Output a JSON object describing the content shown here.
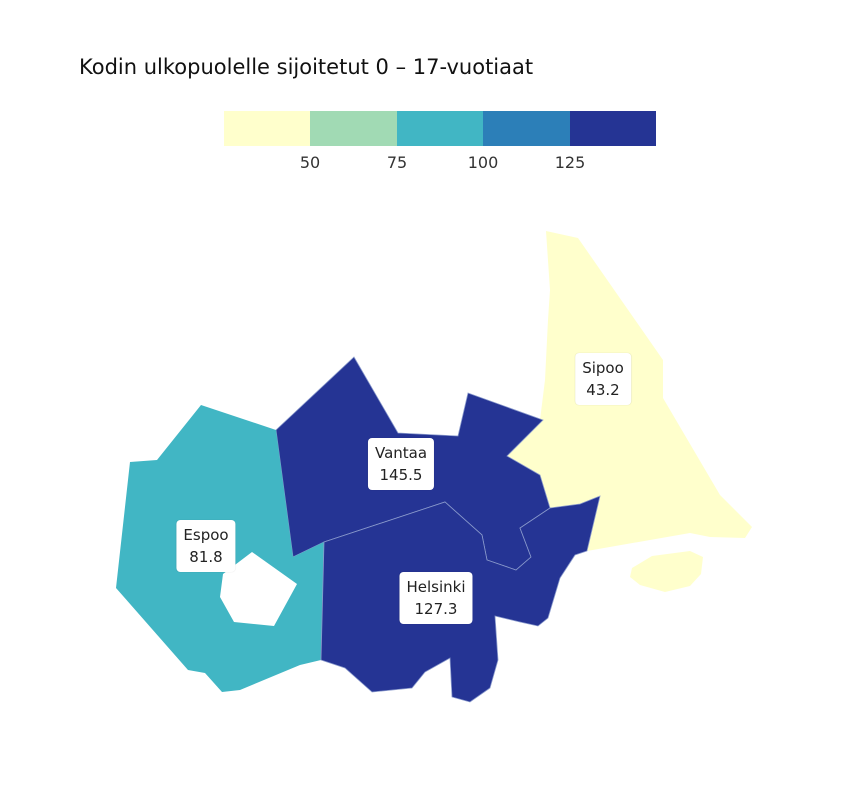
{
  "title": "Kodin ulkopuolelle sijoitetut 0 – 17-vuotiaat",
  "legend": {
    "colors": [
      "#ffffcc",
      "#a1dab4",
      "#41b6c4",
      "#2c7fb8",
      "#253494"
    ],
    "ticks": [
      "50",
      "75",
      "100",
      "125"
    ]
  },
  "regions": [
    {
      "name": "Sipoo",
      "value": "43.2",
      "color": "#ffffcc"
    },
    {
      "name": "Vantaa",
      "value": "145.5",
      "color": "#253494"
    },
    {
      "name": "Espoo",
      "value": "81.8",
      "color": "#41b6c4"
    },
    {
      "name": "Helsinki",
      "value": "127.3",
      "color": "#253494"
    }
  ]
}
